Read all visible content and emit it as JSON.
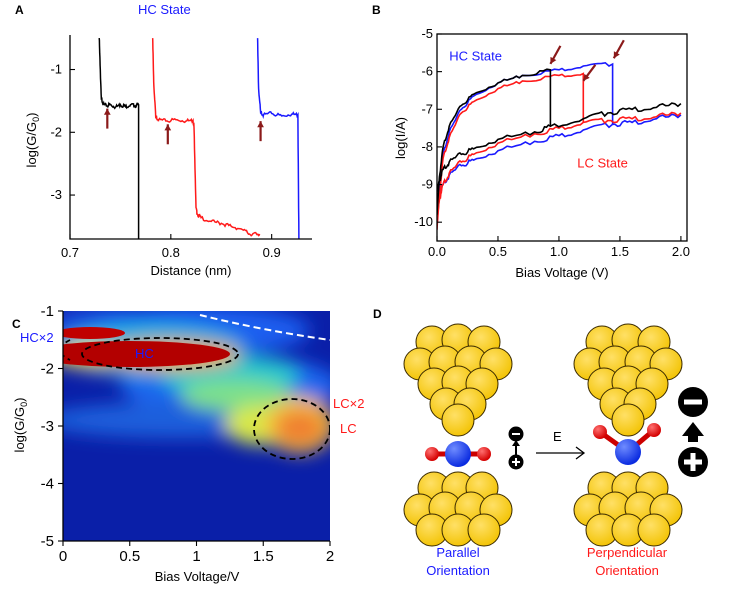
{
  "colors": {
    "black": "#000000",
    "red": "#ff1a1a",
    "blue": "#1a1aff",
    "arrow": "#8b1a1a",
    "gold": "#f7c800",
    "gold_edge": "#3a2a00",
    "atom_blue": "#1a3cff",
    "atom_red": "#e00000"
  },
  "chart_data": [
    {
      "panel": "A",
      "type": "line",
      "title": "HC State",
      "xlabel": "Distance (nm)",
      "ylabel": "log(G/G0)",
      "xlim": [
        0.7,
        0.94
      ],
      "ylim": [
        -3.7,
        -0.45
      ],
      "xticks": [
        0.7,
        0.8,
        0.9
      ],
      "yticks": [
        -1,
        -2,
        -3
      ],
      "series": [
        {
          "color": "#000000",
          "x": [
            0.729,
            0.73,
            0.731,
            0.733,
            0.736,
            0.74,
            0.745,
            0.75,
            0.755,
            0.76,
            0.764,
            0.768,
            0.768
          ],
          "y": [
            -0.5,
            -1.0,
            -1.45,
            -1.55,
            -1.58,
            -1.56,
            -1.6,
            -1.56,
            -1.59,
            -1.56,
            -1.58,
            -1.56,
            -3.7
          ]
        },
        {
          "color": "#ff1a1a",
          "x": [
            0.782,
            0.783,
            0.785,
            0.788,
            0.795,
            0.805,
            0.815,
            0.822,
            0.823,
            0.825,
            0.826,
            0.83,
            0.84,
            0.85,
            0.86,
            0.87,
            0.878,
            0.885,
            0.888
          ],
          "y": [
            -0.5,
            -1.2,
            -1.75,
            -1.8,
            -1.82,
            -1.8,
            -1.82,
            -1.81,
            -1.92,
            -3.2,
            -3.3,
            -3.36,
            -3.42,
            -3.45,
            -3.5,
            -3.54,
            -3.62,
            -3.62,
            -3.62
          ]
        },
        {
          "color": "#1a1aff",
          "x": [
            0.886,
            0.887,
            0.889,
            0.892,
            0.9,
            0.91,
            0.92,
            0.926,
            0.927
          ],
          "y": [
            -0.5,
            -1.3,
            -1.68,
            -1.72,
            -1.7,
            -1.74,
            -1.71,
            -1.72,
            -3.7
          ]
        }
      ],
      "arrows_at": [
        [
          0.737,
          -1.75
        ],
        [
          0.797,
          -2.0
        ],
        [
          0.889,
          -1.95
        ]
      ]
    },
    {
      "panel": "B",
      "type": "line",
      "xlabel": "Bias Voltage (V)",
      "ylabel": "log(I/A)",
      "xlim": [
        0,
        2.05
      ],
      "ylim": [
        -10.5,
        -5
      ],
      "xticks": [
        0.0,
        0.5,
        1.0,
        1.5,
        2.0
      ],
      "yticks": [
        -5,
        -6,
        -7,
        -8,
        -9,
        -10
      ],
      "annotations": [
        {
          "text": "HC State",
          "color": "#1a1aff",
          "x": 0.1,
          "y": -5.7
        },
        {
          "text": "LC State",
          "color": "#ff1a1a",
          "x": 1.15,
          "y": -8.55
        }
      ],
      "series": [
        {
          "color": "#1a1aff",
          "up_x": [
            0,
            0.02,
            0.05,
            0.1,
            0.2,
            0.3,
            0.5,
            0.7,
            1.0,
            1.2,
            1.44
          ],
          "up_y": [
            -10.0,
            -9.1,
            -8.2,
            -7.6,
            -7.0,
            -6.65,
            -6.3,
            -6.1,
            -5.95,
            -5.85,
            -5.8
          ],
          "low_x": [
            0,
            0.02,
            0.05,
            0.1,
            0.2,
            0.3,
            0.5,
            0.8,
            1.0,
            1.2,
            1.44,
            1.6,
            1.8,
            2.0
          ],
          "low_y": [
            -9.6,
            -9.3,
            -9.0,
            -8.75,
            -8.5,
            -8.35,
            -8.1,
            -7.85,
            -7.7,
            -7.55,
            -7.4,
            -7.35,
            -7.25,
            -7.15
          ]
        },
        {
          "color": "#ff1a1a",
          "up_x": [
            0,
            0.02,
            0.05,
            0.1,
            0.2,
            0.3,
            0.5,
            0.7,
            1.0,
            1.2
          ],
          "up_y": [
            -10.2,
            -9.3,
            -8.3,
            -7.75,
            -7.1,
            -6.8,
            -6.45,
            -6.25,
            -6.1,
            -6.05
          ],
          "low_x": [
            0,
            0.02,
            0.05,
            0.1,
            0.2,
            0.3,
            0.5,
            0.8,
            1.0,
            1.2,
            1.4,
            1.6,
            1.8,
            2.0
          ],
          "low_y": [
            -10.0,
            -9.4,
            -9.0,
            -8.7,
            -8.4,
            -8.2,
            -7.9,
            -7.65,
            -7.5,
            -7.35,
            -7.3,
            -7.25,
            -7.2,
            -7.1
          ]
        },
        {
          "color": "#000000",
          "up_x": [
            0,
            0.02,
            0.05,
            0.1,
            0.2,
            0.3,
            0.5,
            0.7,
            0.93
          ],
          "up_y": [
            -9.8,
            -8.8,
            -8.0,
            -7.45,
            -6.9,
            -6.6,
            -6.3,
            -6.1,
            -5.95
          ],
          "low_x": [
            0,
            0.02,
            0.05,
            0.1,
            0.2,
            0.3,
            0.5,
            0.8,
            0.93,
            1.2,
            1.4,
            1.6,
            1.8,
            2.0
          ],
          "low_y": [
            -9.2,
            -8.9,
            -8.6,
            -8.4,
            -8.2,
            -8.05,
            -7.8,
            -7.6,
            -7.45,
            -7.25,
            -7.1,
            -7.0,
            -6.95,
            -6.85
          ]
        }
      ],
      "arrows_at": [
        [
          0.93,
          -5.9
        ],
        [
          1.2,
          -6.35
        ],
        [
          1.45,
          -5.75
        ]
      ]
    },
    {
      "panel": "C",
      "type": "heatmap",
      "xlabel": "Bias Voltage/V",
      "ylabel": "log(G/G0)",
      "xlim": [
        0,
        2
      ],
      "ylim": [
        -5,
        -1
      ],
      "xticks": [
        "0",
        "0.5",
        "1",
        "1.5",
        "2"
      ],
      "yticks": [
        "-1",
        "-2",
        "-3",
        "-4",
        "-5"
      ],
      "labels": [
        {
          "text": "HC×2",
          "color": "#1a1aff"
        },
        {
          "text": "HC",
          "color": "#1a1aff"
        },
        {
          "text": "LC×2",
          "color": "#ff1a1a"
        },
        {
          "text": "LC",
          "color": "#ff1a1a"
        }
      ]
    }
  ],
  "panel_labels": [
    "A",
    "B",
    "C",
    "D"
  ],
  "diagram": {
    "arrow_label": "E",
    "left_caption_1": "Parallel",
    "left_caption_2": "Orientation",
    "right_caption_1": "Perpendicular",
    "right_caption_2": "Orientation",
    "minus": "−",
    "plus": "+"
  }
}
